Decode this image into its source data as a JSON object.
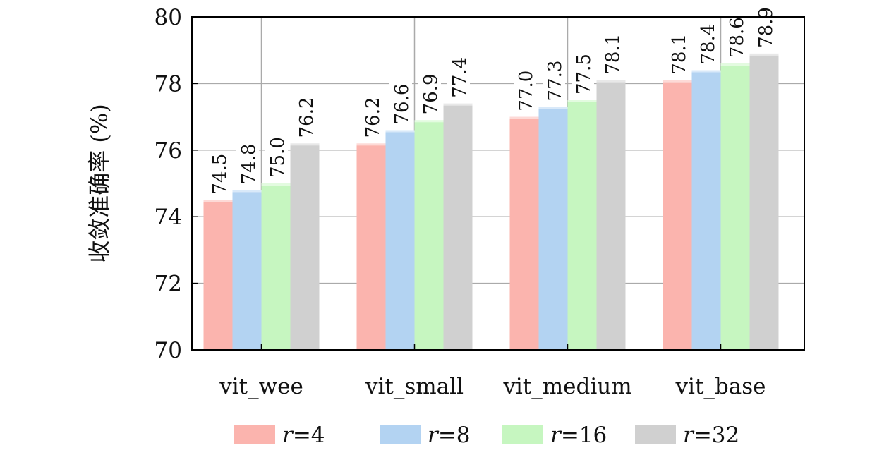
{
  "chart_data": {
    "type": "bar",
    "title": "",
    "xlabel": "",
    "ylabel": "收敛准确率 (%)",
    "ylim": [
      70,
      80
    ],
    "yticks": [
      "70",
      "72",
      "74",
      "76",
      "78",
      "80"
    ],
    "grid": true,
    "legend_position": "bottom",
    "categories": [
      "vit_wee",
      "vit_small",
      "vit_medium",
      "vit_base"
    ],
    "series": [
      {
        "name": "r=4",
        "italic": "r",
        "suffix": "=4",
        "color": "#fbb4ae",
        "values": [
          74.5,
          76.2,
          77.0,
          78.1
        ],
        "labels": [
          "74.5",
          "76.2",
          "77.0",
          "78.1"
        ]
      },
      {
        "name": "r=8",
        "italic": "r",
        "suffix": "=8",
        "color": "#b3d3f2",
        "values": [
          74.8,
          76.6,
          77.3,
          78.4
        ],
        "labels": [
          "74.8",
          "76.6",
          "77.3",
          "78.4"
        ]
      },
      {
        "name": "r=16",
        "italic": "r",
        "suffix": "=16",
        "color": "#c6f6c0",
        "values": [
          75.0,
          76.9,
          77.5,
          78.6
        ],
        "labels": [
          "75.0",
          "76.9",
          "77.5",
          "78.6"
        ]
      },
      {
        "name": "r=32",
        "italic": "r",
        "suffix": "=32",
        "color": "#d0d0d0",
        "values": [
          76.2,
          77.4,
          78.1,
          78.9
        ],
        "labels": [
          "76.2",
          "77.4",
          "78.1",
          "78.9"
        ]
      }
    ]
  }
}
